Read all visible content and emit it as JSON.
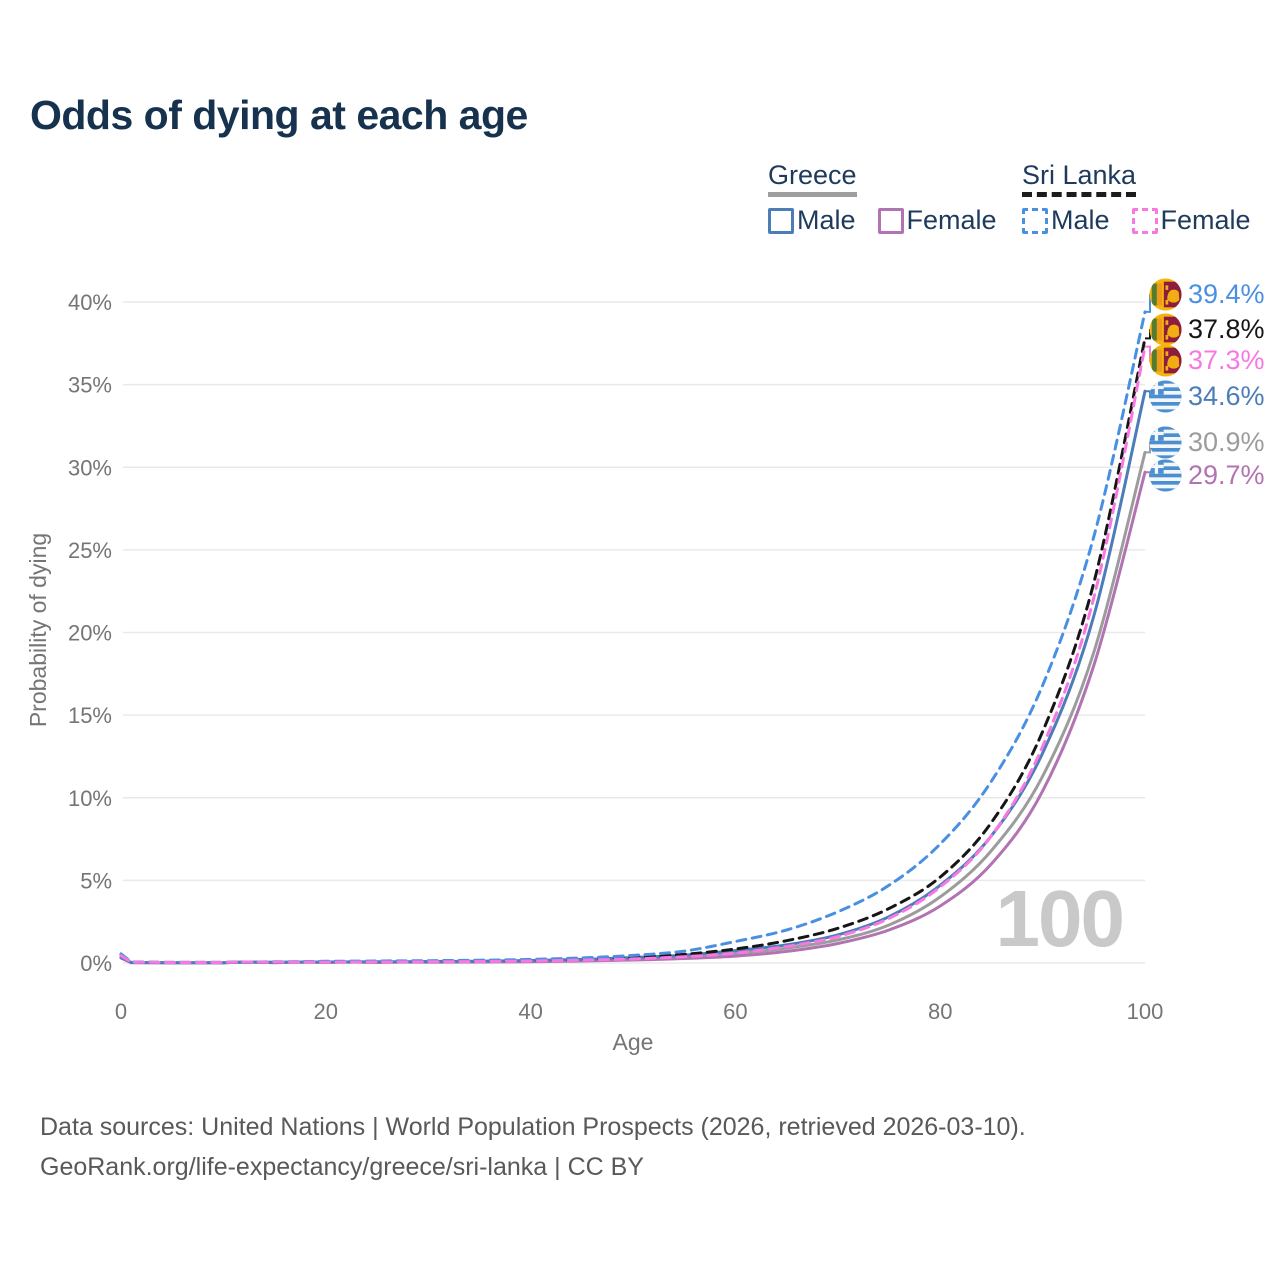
{
  "title": "Odds of dying at each age",
  "legend": {
    "greece": {
      "country": "Greece",
      "male_label": "Male",
      "female_label": "Female",
      "line_style": "solid",
      "underline_color": "#9e9e9e"
    },
    "sri_lanka": {
      "country": "Sri Lanka",
      "male_label": "Male",
      "female_label": "Female",
      "line_style": "dashed",
      "underline_color": "#1c1c1c"
    }
  },
  "chart_data": {
    "type": "line",
    "title": "Odds of dying at each age",
    "xlabel": "Age",
    "ylabel": "Probability of dying",
    "xlim": [
      0,
      100
    ],
    "ylim": [
      0,
      40
    ],
    "xticks": [
      "0",
      "20",
      "40",
      "60",
      "80",
      "100"
    ],
    "xtick_values": [
      0,
      20,
      40,
      60,
      80,
      100
    ],
    "yticks": [
      "0%",
      "5%",
      "10%",
      "15%",
      "20%",
      "25%",
      "30%",
      "35%",
      "40%"
    ],
    "ytick_values": [
      0,
      5,
      10,
      15,
      20,
      25,
      30,
      35,
      40
    ],
    "grid": "horizontal",
    "legend_position": "top-right",
    "watermark": "100",
    "x": [
      0,
      1,
      5,
      10,
      15,
      20,
      25,
      30,
      35,
      40,
      45,
      50,
      55,
      60,
      65,
      70,
      75,
      80,
      85,
      90,
      95,
      100
    ],
    "series": [
      {
        "name": "Sri Lanka Male",
        "country": "Sri Lanka",
        "sex": "Male",
        "color": "#4a90e2",
        "dashed": true,
        "flag": "sri-lanka",
        "end_label": "39.4%",
        "end_value": 39.4,
        "values": [
          0.55,
          0.06,
          0.04,
          0.04,
          0.07,
          0.1,
          0.12,
          0.14,
          0.17,
          0.22,
          0.31,
          0.46,
          0.72,
          1.3,
          2.0,
          3.1,
          4.7,
          7.2,
          11.0,
          16.8,
          25.8,
          39.4
        ]
      },
      {
        "name": "Sri Lanka",
        "country": "Sri Lanka",
        "sex": "Both",
        "color": "#161616",
        "dashed": true,
        "flag": "sri-lanka",
        "end_label": "37.8%",
        "end_value": 37.8,
        "values": [
          0.5,
          0.05,
          0.03,
          0.03,
          0.05,
          0.07,
          0.08,
          0.1,
          0.12,
          0.16,
          0.22,
          0.33,
          0.52,
          0.85,
          1.35,
          2.1,
          3.3,
          5.2,
          8.5,
          14.0,
          23.0,
          37.8
        ]
      },
      {
        "name": "Sri Lanka Female",
        "country": "Sri Lanka",
        "sex": "Female",
        "color": "#f878e2",
        "dashed": true,
        "flag": "sri-lanka",
        "end_label": "37.3%",
        "end_value": 37.3,
        "values": [
          0.45,
          0.04,
          0.03,
          0.03,
          0.04,
          0.05,
          0.06,
          0.07,
          0.09,
          0.12,
          0.17,
          0.25,
          0.38,
          0.6,
          1.0,
          1.6,
          2.7,
          4.6,
          7.7,
          13.1,
          22.1,
          37.3
        ]
      },
      {
        "name": "Greece Male",
        "country": "Greece",
        "sex": "Male",
        "color": "#4d7db8",
        "dashed": false,
        "flag": "greece",
        "end_label": "34.6%",
        "end_value": 34.6,
        "values": [
          0.35,
          0.03,
          0.02,
          0.02,
          0.04,
          0.06,
          0.07,
          0.09,
          0.11,
          0.15,
          0.22,
          0.33,
          0.48,
          0.75,
          1.1,
          1.7,
          2.8,
          4.7,
          7.7,
          12.7,
          21.0,
          34.6
        ]
      },
      {
        "name": "Greece",
        "country": "Greece",
        "sex": "Both",
        "color": "#9c9c9c",
        "dashed": false,
        "flag": "greece",
        "end_label": "30.9%",
        "end_value": 30.9,
        "values": [
          0.32,
          0.03,
          0.02,
          0.02,
          0.03,
          0.04,
          0.05,
          0.06,
          0.08,
          0.11,
          0.16,
          0.25,
          0.37,
          0.58,
          0.9,
          1.4,
          2.3,
          4.0,
          6.8,
          11.3,
          18.8,
          30.9
        ]
      },
      {
        "name": "Greece Female",
        "country": "Greece",
        "sex": "Female",
        "color": "#b173b1",
        "dashed": false,
        "flag": "greece",
        "end_label": "29.7%",
        "end_value": 29.7,
        "values": [
          0.3,
          0.02,
          0.01,
          0.01,
          0.02,
          0.03,
          0.03,
          0.04,
          0.06,
          0.08,
          0.12,
          0.18,
          0.27,
          0.42,
          0.7,
          1.18,
          2.0,
          3.45,
          6.0,
          10.4,
          18.0,
          29.7
        ]
      }
    ]
  },
  "footer": {
    "line1": "Data sources: United Nations | World Population Prospects (2026, retrieved 2026-03-10).",
    "line2": "GeoRank.org/life-expectancy/greece/sri-lanka | CC BY"
  },
  "colors": {
    "background": "#ffffff",
    "title": "#16324f",
    "legend_text": "#1e3a5c",
    "axis_text": "#757575",
    "grid": "#e9e9e9",
    "watermark": "#c9c9c9",
    "footer_text": "#595959"
  }
}
